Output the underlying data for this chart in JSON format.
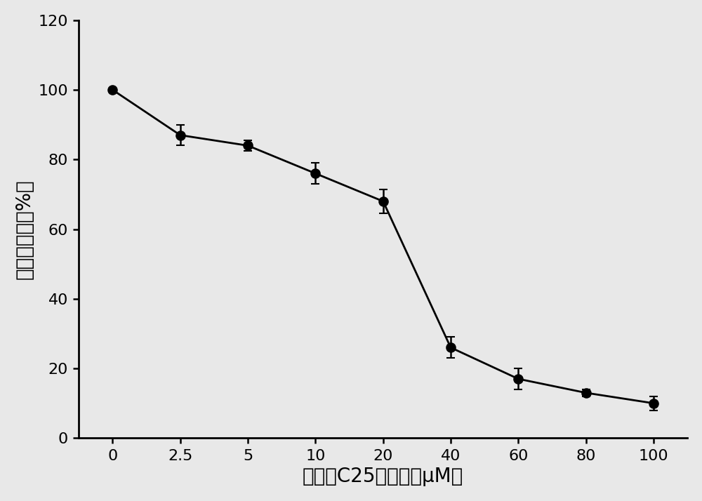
{
  "x_positions": [
    0,
    1,
    2,
    3,
    4,
    5,
    6,
    7,
    8
  ],
  "x_labels": [
    "0",
    "2.5",
    "5",
    "10",
    "20",
    "40",
    "60",
    "80",
    "100"
  ],
  "y": [
    100,
    87,
    84,
    76,
    68,
    26,
    17,
    13,
    10
  ],
  "yerr": [
    0.5,
    3,
    1.5,
    3,
    3.5,
    3,
    3,
    1,
    2
  ],
  "xlabel": "化合物C25的浓度（μM）",
  "ylabel": "细胞存活率（%）",
  "xlim": [
    -0.5,
    8.5
  ],
  "ylim": [
    0,
    120
  ],
  "yticks": [
    0,
    20,
    40,
    60,
    80,
    100,
    120
  ],
  "line_color": "#000000",
  "marker": "o",
  "marker_size": 9,
  "marker_face_color": "#000000",
  "linewidth": 2.0,
  "capsize": 4,
  "background_color": "#e8e8e8",
  "xlabel_fontsize": 20,
  "ylabel_fontsize": 20,
  "tick_fontsize": 16,
  "chinese_font": "SimHei"
}
